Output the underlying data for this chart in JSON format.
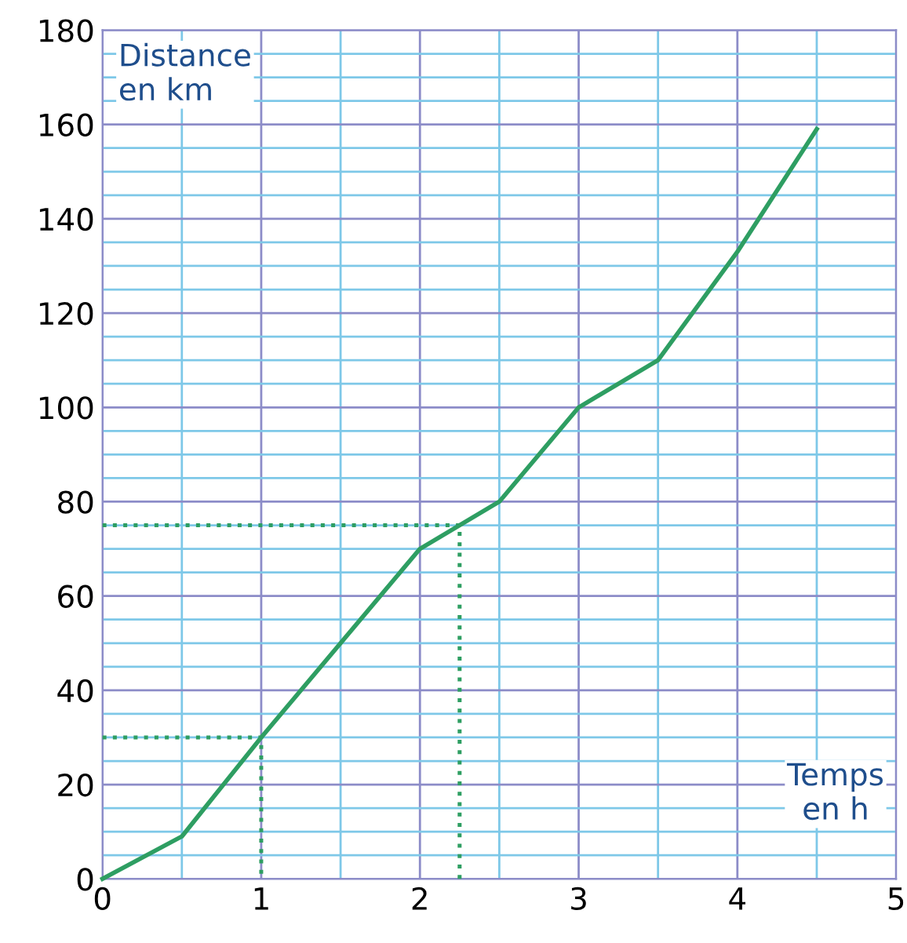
{
  "chart_data": {
    "type": "line",
    "xlabel": "Temps\nen h",
    "ylabel": "Distance\nen km",
    "xlim": [
      0,
      5
    ],
    "ylim": [
      0,
      180
    ],
    "xticks": [
      0,
      {
        "value": 0.5,
        "label": null
      },
      1,
      {
        "value": 1.5,
        "label": null
      },
      2,
      {
        "value": 2.5,
        "label": null
      },
      3,
      {
        "value": 3.5,
        "label": null
      },
      4,
      {
        "value": 4.5,
        "label": null
      },
      5
    ],
    "yticks": [
      0,
      {
        "value": 5,
        "label": null
      },
      {
        "value": 10,
        "label": null
      },
      {
        "value": 15,
        "label": null
      },
      20,
      {
        "value": 25,
        "label": null
      },
      {
        "value": 30,
        "label": null
      },
      {
        "value": 35,
        "label": null
      },
      40,
      {
        "value": 45,
        "label": null
      },
      {
        "value": 50,
        "label": null
      },
      {
        "value": 55,
        "label": null
      },
      60,
      {
        "value": 65,
        "label": null
      },
      {
        "value": 70,
        "label": null
      },
      {
        "value": 75,
        "label": null
      },
      80,
      {
        "value": 85,
        "label": null
      },
      {
        "value": 90,
        "label": null
      },
      {
        "value": 95,
        "label": null
      },
      100,
      {
        "value": 105,
        "label": null
      },
      {
        "value": 110,
        "label": null
      },
      {
        "value": 115,
        "label": null
      },
      120,
      {
        "value": 125,
        "label": null
      },
      {
        "value": 130,
        "label": null
      },
      {
        "value": 135,
        "label": null
      },
      140,
      {
        "value": 145,
        "label": null
      },
      {
        "value": 150,
        "label": null
      },
      {
        "value": 155,
        "label": null
      },
      160,
      {
        "value": 165,
        "label": null
      },
      {
        "value": 170,
        "label": null
      },
      {
        "value": 175,
        "label": null
      },
      180
    ],
    "grid": true,
    "marker": "none",
    "series": [
      {
        "color": "#2e9e62",
        "x": [
          0,
          0.5,
          1,
          2,
          2.5,
          3,
          3.5,
          4,
          4.5
        ],
        "values": [
          0,
          9,
          30,
          70,
          80,
          100,
          110,
          133,
          159
        ],
        "line_style": "solid"
      },
      {
        "color": "#2e9e62",
        "x": [
          0,
          1,
          1
        ],
        "values": [
          30,
          30,
          0
        ],
        "line_style": "dotted"
      },
      {
        "color": "#2e9e62",
        "x": [
          0,
          2.25,
          2.25
        ],
        "values": [
          75,
          75,
          0
        ],
        "line_style": "dotted"
      }
    ]
  }
}
